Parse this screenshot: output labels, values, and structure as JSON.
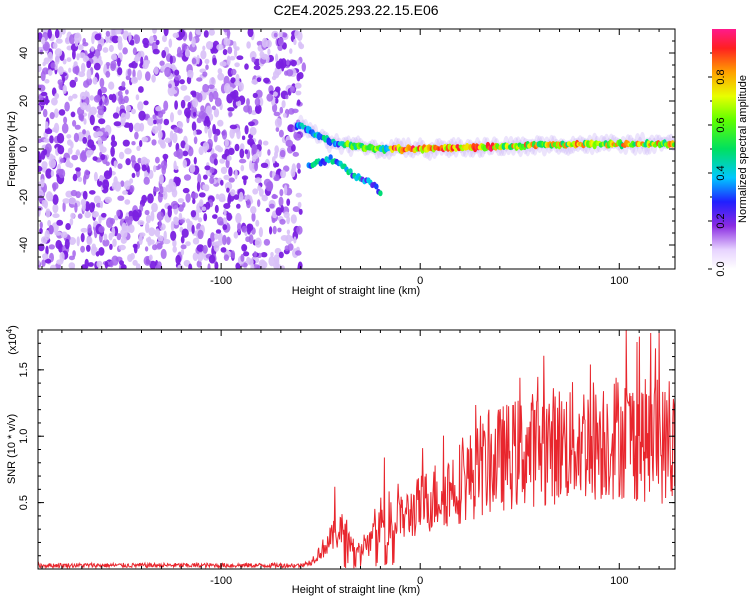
{
  "title": "C2E4.2025.293.22.15.E06",
  "chart_data": [
    {
      "type": "heatmap",
      "panel": "spectrogram",
      "xlabel": "Height of straight line (km)",
      "ylabel": "Frequency (Hz)",
      "xlim": [
        -192,
        128
      ],
      "ylim": [
        -50,
        50
      ],
      "xticks": [
        -100,
        0,
        100
      ],
      "xtick_labels": [
        "-100",
        "0",
        "100"
      ],
      "yticks": [
        -40,
        -20,
        0,
        20,
        40
      ],
      "ytick_labels": [
        "-40",
        "-20",
        "0",
        "20",
        "40"
      ],
      "noise_region_x": [
        -192,
        -60
      ],
      "signal_line": [
        {
          "x": -60,
          "f": 10
        },
        {
          "x": -55,
          "f": 7
        },
        {
          "x": -50,
          "f": 5
        },
        {
          "x": -45,
          "f": 3
        },
        {
          "x": -40,
          "f": 2
        },
        {
          "x": -30,
          "f": 1
        },
        {
          "x": -20,
          "f": 0
        },
        {
          "x": 0,
          "f": 0
        },
        {
          "x": 40,
          "f": 1
        },
        {
          "x": 80,
          "f": 2
        },
        {
          "x": 128,
          "f": 2
        }
      ],
      "secondary_branch": [
        {
          "x": -55,
          "f": -7
        },
        {
          "x": -45,
          "f": -4
        },
        {
          "x": -40,
          "f": -6
        },
        {
          "x": -35,
          "f": -10
        },
        {
          "x": -30,
          "f": -12
        },
        {
          "x": -25,
          "f": -14
        },
        {
          "x": -20,
          "f": -18
        }
      ],
      "colorbar": {
        "label": "Normalized spectral amplitude",
        "range": [
          0,
          1
        ],
        "ticks": [
          0,
          0.2,
          0.4,
          0.6,
          0.8
        ],
        "tick_labels": [
          "0.0",
          "0.2",
          "0.4",
          "0.6",
          "0.8"
        ]
      }
    },
    {
      "type": "line",
      "panel": "snr",
      "xlabel": "Height of straight line (km)",
      "ylabel": "SNR (10 * v/v)",
      "multiplier_label": "(x10",
      "multiplier_exponent": "4",
      "xlim": [
        -192,
        128
      ],
      "ylim": [
        0,
        1.8
      ],
      "xticks": [
        -100,
        0,
        100
      ],
      "xtick_labels": [
        "-100",
        "0",
        "100"
      ],
      "yticks": [
        0.5,
        1.0,
        1.5
      ],
      "ytick_labels": [
        "0.5",
        "1.0",
        "1.5"
      ],
      "color": "#e8262d",
      "envelope": [
        {
          "x": -192,
          "y": 0.03
        },
        {
          "x": -60,
          "y": 0.03
        },
        {
          "x": -55,
          "y": 0.06
        },
        {
          "x": -45,
          "y": 0.25
        },
        {
          "x": -40,
          "y": 0.35
        },
        {
          "x": -35,
          "y": 0.2
        },
        {
          "x": -30,
          "y": 0.15
        },
        {
          "x": -25,
          "y": 0.22
        },
        {
          "x": -20,
          "y": 0.35
        },
        {
          "x": -10,
          "y": 0.42
        },
        {
          "x": 0,
          "y": 0.55
        },
        {
          "x": 20,
          "y": 0.75
        },
        {
          "x": 40,
          "y": 0.95
        },
        {
          "x": 60,
          "y": 1.05
        },
        {
          "x": 80,
          "y": 1.1
        },
        {
          "x": 100,
          "y": 1.15
        },
        {
          "x": 128,
          "y": 1.05
        }
      ],
      "peaks": [
        {
          "x": -43,
          "y": 0.62
        },
        {
          "x": -18,
          "y": 0.84
        },
        {
          "x": 50,
          "y": 1.44
        },
        {
          "x": 110,
          "y": 1.75
        },
        {
          "x": 120,
          "y": 1.78
        }
      ]
    }
  ]
}
